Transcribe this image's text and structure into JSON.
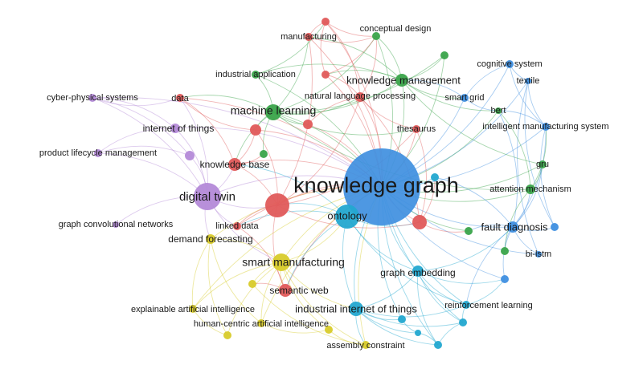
{
  "network": {
    "colors": {
      "red": "#e05a5a",
      "green": "#3aa44a",
      "blue": "#3f8fe0",
      "cyan": "#23a8d0",
      "purple": "#b48ad8",
      "yellow": "#d8cb2a"
    },
    "nodes": [
      {
        "id": "kg",
        "label": "knowledge graph",
        "cluster": "blue"
      },
      {
        "id": "ontology",
        "label": "ontology",
        "cluster": "cyan"
      },
      {
        "id": "dt",
        "label": "digital twin",
        "cluster": "purple"
      },
      {
        "id": "ml",
        "label": "machine learning",
        "cluster": "green"
      },
      {
        "id": "sm",
        "label": "smart manufacturing",
        "cluster": "yellow"
      },
      {
        "id": "km",
        "label": "knowledge management",
        "cluster": "green"
      },
      {
        "id": "iiot",
        "label": "industrial internet of things",
        "cluster": "cyan"
      },
      {
        "id": "kb",
        "label": "knowledge base",
        "cluster": "red"
      },
      {
        "id": "fd",
        "label": "fault diagnosis",
        "cluster": "blue"
      },
      {
        "id": "ge",
        "label": "graph embedding",
        "cluster": "cyan"
      },
      {
        "id": "sw",
        "label": "semantic web",
        "cluster": "red"
      },
      {
        "id": "iot",
        "label": "internet of things",
        "cluster": "purple"
      },
      {
        "id": "nlp",
        "label": "natural language processing",
        "cluster": "red"
      },
      {
        "id": "am",
        "label": "attention mechanism",
        "cluster": "green"
      },
      {
        "id": "df",
        "label": "demand forecasting",
        "cluster": "yellow"
      },
      {
        "id": "ld",
        "label": "linked data",
        "cluster": "red"
      },
      {
        "id": "cps",
        "label": "cyber-physical systems",
        "cluster": "purple"
      },
      {
        "id": "plm",
        "label": "product lifecycle management",
        "cluster": "purple"
      },
      {
        "id": "gcn",
        "label": "graph convolutional networks",
        "cluster": "purple"
      },
      {
        "id": "data",
        "label": "data",
        "cluster": "red"
      },
      {
        "id": "ia",
        "label": "industrial application",
        "cluster": "green"
      },
      {
        "id": "mfg",
        "label": "manufacturing",
        "cluster": "red"
      },
      {
        "id": "cd",
        "label": "conceptual design",
        "cluster": "green"
      },
      {
        "id": "cog",
        "label": "cognitive system",
        "cluster": "blue"
      },
      {
        "id": "tex",
        "label": "textile",
        "cluster": "blue"
      },
      {
        "id": "sg",
        "label": "smart grid",
        "cluster": "blue"
      },
      {
        "id": "bert",
        "label": "bert",
        "cluster": "green"
      },
      {
        "id": "ims",
        "label": "intelligent manufacturing system",
        "cluster": "blue"
      },
      {
        "id": "thes",
        "label": "thesaurus",
        "cluster": "red"
      },
      {
        "id": "gru",
        "label": "gru",
        "cluster": "green"
      },
      {
        "id": "bilstm",
        "label": "bi-lstm",
        "cluster": "blue"
      },
      {
        "id": "rl",
        "label": "reinforcement learning",
        "cluster": "cyan"
      },
      {
        "id": "xai",
        "label": "explainable artificial intelligence",
        "cluster": "yellow"
      },
      {
        "id": "hcai",
        "label": "human-centric artificial intelligence",
        "cluster": "yellow"
      },
      {
        "id": "ac",
        "label": "assembly constraint",
        "cluster": "yellow"
      },
      {
        "id": "r1",
        "label": "",
        "cluster": "red"
      },
      {
        "id": "r2",
        "label": "",
        "cluster": "red"
      },
      {
        "id": "r3",
        "label": "",
        "cluster": "red"
      },
      {
        "id": "r4",
        "label": "",
        "cluster": "red"
      },
      {
        "id": "r5",
        "label": "",
        "cluster": "red"
      },
      {
        "id": "r6",
        "label": "",
        "cluster": "red"
      },
      {
        "id": "g1",
        "label": "",
        "cluster": "green"
      },
      {
        "id": "g2",
        "label": "",
        "cluster": "green"
      },
      {
        "id": "g3",
        "label": "",
        "cluster": "green"
      },
      {
        "id": "g4",
        "label": "",
        "cluster": "green"
      },
      {
        "id": "b1",
        "label": "",
        "cluster": "blue"
      },
      {
        "id": "b2",
        "label": "",
        "cluster": "blue"
      },
      {
        "id": "c1",
        "label": "",
        "cluster": "cyan"
      },
      {
        "id": "c2",
        "label": "",
        "cluster": "cyan"
      },
      {
        "id": "c3",
        "label": "",
        "cluster": "cyan"
      },
      {
        "id": "c4",
        "label": "",
        "cluster": "cyan"
      },
      {
        "id": "c5",
        "label": "",
        "cluster": "cyan"
      },
      {
        "id": "y1",
        "label": "",
        "cluster": "yellow"
      },
      {
        "id": "y2",
        "label": "",
        "cluster": "yellow"
      },
      {
        "id": "y3",
        "label": "",
        "cluster": "yellow"
      },
      {
        "id": "p1",
        "label": "",
        "cluster": "purple"
      }
    ]
  }
}
